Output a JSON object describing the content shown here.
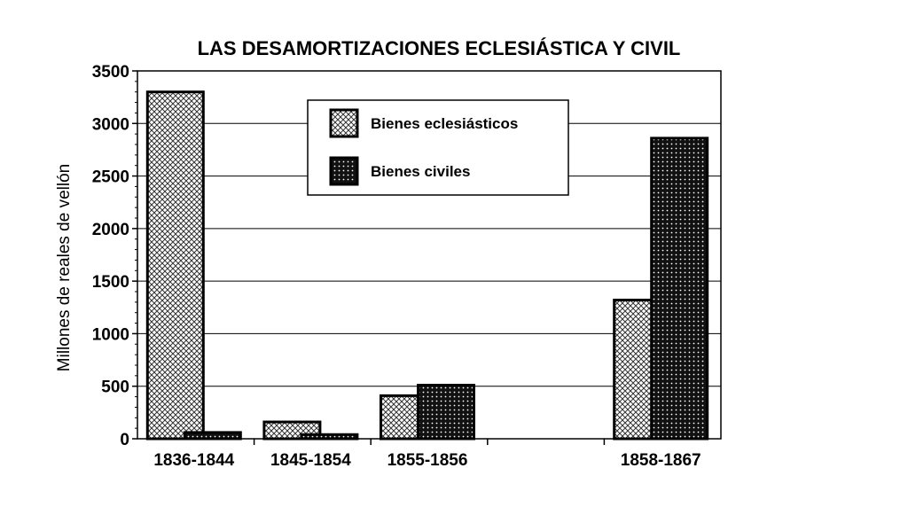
{
  "chart_data": {
    "type": "bar",
    "title": "LAS DESAMORTIZACIONES ECLESIÁSTICA Y CIVIL",
    "ylabel": "Millones de reales de vellón",
    "xlabel": "",
    "ylim": [
      0,
      3500
    ],
    "yticks": [
      0,
      500,
      1000,
      1500,
      2000,
      2500,
      3000,
      3500
    ],
    "grid": true,
    "legend_position": "top-center",
    "categories": [
      "1836-1844",
      "1845-1854",
      "1855-1856",
      "",
      "1858-1867"
    ],
    "series": [
      {
        "name": "Bienes eclesiásticos",
        "pattern": "light-crosshatch",
        "values": [
          3300,
          160,
          410,
          null,
          1320
        ]
      },
      {
        "name": "Bienes civiles",
        "pattern": "dark-crosshatch",
        "values": [
          60,
          40,
          510,
          null,
          2860
        ]
      }
    ]
  }
}
